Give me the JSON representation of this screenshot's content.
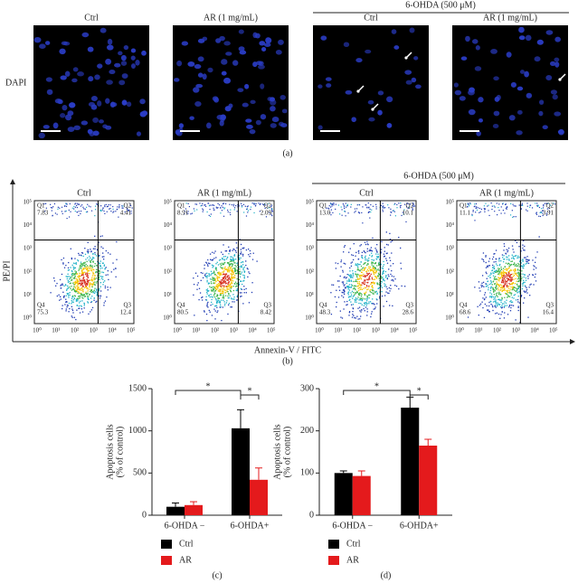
{
  "panel_a": {
    "headers": [
      "Ctrl",
      "AR (1 mg/mL)",
      "Ctrl",
      "AR (1 mg/mL)"
    ],
    "group_label": "6-OHDA (500 μM)",
    "row_label": "DAPI",
    "caption": "(a)"
  },
  "panel_b": {
    "headers": [
      "Ctrl",
      "AR (1 mg/mL)",
      "Ctrl",
      "AR (1 mg/mL)"
    ],
    "group_label": "6-OHDA (500 μM)",
    "y_label": "PE/PI",
    "x_label": "Annexin-V / FITC",
    "caption": "(b)",
    "axis_ticks": [
      "10⁰",
      "10¹",
      "10²",
      "10³",
      "10⁴",
      "10⁵"
    ],
    "quadrant_names": [
      "Q1",
      "Q2",
      "Q3",
      "Q4"
    ],
    "plots": [
      {
        "Q1": "7.83",
        "Q2": "4.41",
        "Q3": "12.4",
        "Q4": "75.3"
      },
      {
        "Q1": "8.91",
        "Q2": "2.09",
        "Q3": "8.42",
        "Q4": "80.5"
      },
      {
        "Q1": "13.0",
        "Q2": "10.1",
        "Q3": "28.6",
        "Q4": "48.3"
      },
      {
        "Q1": "11.1",
        "Q2": "3.91",
        "Q3": "16.4",
        "Q4": "68.6"
      }
    ]
  },
  "chart_data": [
    {
      "type": "bar",
      "caption": "(c)",
      "y_label": [
        "Apoptosis cells",
        "(% of control)"
      ],
      "categories": [
        "6-OHDA −",
        "6-OHDA+"
      ],
      "series": [
        {
          "name": "Ctrl",
          "color": "#000000",
          "values": [
            100,
            1030
          ],
          "errors": [
            45,
            220
          ]
        },
        {
          "name": "AR",
          "color": "#e41a1c",
          "values": [
            120,
            420
          ],
          "errors": [
            40,
            140
          ]
        }
      ],
      "ylim": [
        0,
        1500
      ],
      "yticks": [
        0,
        500,
        1000,
        1500
      ],
      "annotations": [
        "*",
        "*"
      ]
    },
    {
      "type": "bar",
      "caption": "(d)",
      "y_label": [
        "Apoptosis cells",
        "(% of control)"
      ],
      "categories": [
        "6-OHDA −",
        "6-OHDA+"
      ],
      "series": [
        {
          "name": "Ctrl",
          "color": "#000000",
          "values": [
            100,
            255
          ],
          "errors": [
            5,
            25
          ]
        },
        {
          "name": "AR",
          "color": "#e41a1c",
          "values": [
            93,
            165
          ],
          "errors": [
            12,
            15
          ]
        }
      ],
      "ylim": [
        0,
        300
      ],
      "yticks": [
        0,
        100,
        200,
        300
      ],
      "annotations": [
        "*",
        "*"
      ]
    }
  ]
}
